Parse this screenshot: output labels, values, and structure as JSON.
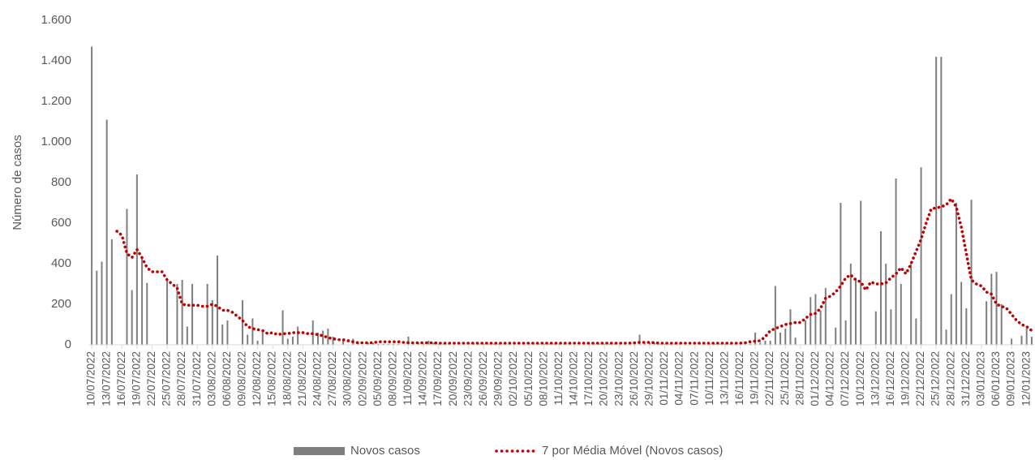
{
  "chart_data": {
    "type": "bar",
    "ylabel": "Número de casos",
    "ylim": [
      0,
      1600
    ],
    "yticks": [
      0,
      200,
      400,
      600,
      800,
      {
        "value": 1000,
        "label": "1.000"
      },
      {
        "value": 1200,
        "label": "1.200"
      },
      {
        "value": 1400,
        "label": "1.400"
      },
      {
        "value": 1600,
        "label": "1.600"
      }
    ],
    "grid": false,
    "legend": "bottom",
    "categories": [
      "10/07/2022",
      null,
      null,
      "13/07/2022",
      null,
      null,
      "16/07/2022",
      null,
      null,
      "19/07/2022",
      null,
      null,
      "22/07/2022",
      null,
      null,
      "25/07/2022",
      null,
      null,
      "28/07/2022",
      null,
      null,
      "31/07/2022",
      null,
      null,
      "03/08/2022",
      null,
      null,
      "06/08/2022",
      null,
      null,
      "09/08/2022",
      null,
      null,
      "12/08/2022",
      null,
      null,
      "15/08/2022",
      null,
      null,
      "18/08/2022",
      null,
      null,
      "21/08/2022",
      null,
      null,
      "24/08/2022",
      null,
      null,
      "27/08/2022",
      null,
      null,
      "30/08/2022",
      null,
      null,
      "02/09/2022",
      null,
      null,
      "05/09/2022",
      null,
      null,
      "08/09/2022",
      null,
      null,
      "11/09/2022",
      null,
      null,
      "14/09/2022",
      null,
      null,
      "17/09/2022",
      null,
      null,
      "20/09/2022",
      null,
      null,
      "23/09/2022",
      null,
      null,
      "26/09/2022",
      null,
      null,
      "29/09/2022",
      null,
      null,
      "02/10/2022",
      null,
      null,
      "05/10/2022",
      null,
      null,
      "08/10/2022",
      null,
      null,
      "11/10/2022",
      null,
      null,
      "14/10/2022",
      null,
      null,
      "17/10/2022",
      null,
      null,
      "20/10/2022",
      null,
      null,
      "23/10/2022",
      null,
      null,
      "26/10/2022",
      null,
      null,
      "29/10/2022",
      null,
      null,
      "01/11/2022",
      null,
      null,
      "04/11/2022",
      null,
      null,
      "07/11/2022",
      null,
      null,
      "10/11/2022",
      null,
      null,
      "13/11/2022",
      null,
      null,
      "16/11/2022",
      null,
      null,
      "19/11/2022",
      null,
      null,
      "22/11/2022",
      null,
      null,
      "25/11/2022",
      null,
      null,
      "28/11/2022",
      null,
      null,
      "01/12/2022",
      null,
      null,
      "04/12/2022",
      null,
      null,
      "07/12/2022",
      null,
      null,
      "10/12/2022",
      null,
      null,
      "13/12/2022",
      null,
      null,
      "16/12/2022",
      null,
      null,
      "19/12/2022",
      null,
      null,
      "22/12/2022",
      null,
      null,
      "25/12/2022",
      null,
      null,
      "28/12/2022",
      null,
      null,
      "31/12/2022",
      null,
      null,
      "03/01/2023",
      null,
      null,
      "06/01/2023",
      null,
      null,
      "09/01/2023",
      null,
      null,
      "12/01/2023",
      null
    ],
    "series": [
      {
        "name": "Novos casos",
        "type": "bar",
        "color": "#7f7f7f",
        "values": [
          1470,
          365,
          410,
          1110,
          520,
          0,
          0,
          670,
          270,
          840,
          430,
          305,
          0,
          0,
          0,
          320,
          0,
          300,
          320,
          90,
          300,
          0,
          0,
          300,
          220,
          440,
          100,
          120,
          0,
          0,
          220,
          50,
          130,
          20,
          70,
          0,
          0,
          0,
          170,
          30,
          40,
          90,
          0,
          0,
          120,
          60,
          70,
          80,
          40,
          0,
          20,
          0,
          30,
          10,
          0,
          10,
          10,
          5,
          5,
          5,
          5,
          5,
          0,
          40,
          5,
          10,
          5,
          20,
          10,
          5,
          5,
          5,
          5,
          5,
          5,
          5,
          5,
          5,
          5,
          5,
          5,
          5,
          5,
          5,
          5,
          5,
          5,
          5,
          5,
          5,
          5,
          5,
          5,
          5,
          5,
          5,
          5,
          5,
          5,
          5,
          5,
          5,
          5,
          5,
          5,
          5,
          5,
          5,
          5,
          50,
          10,
          10,
          10,
          5,
          5,
          5,
          5,
          5,
          5,
          5,
          5,
          5,
          5,
          5,
          5,
          5,
          5,
          5,
          5,
          5,
          5,
          5,
          60,
          10,
          20,
          20,
          290,
          60,
          80,
          175,
          35,
          0,
          120,
          235,
          250,
          170,
          280,
          0,
          85,
          700,
          120,
          400,
          330,
          710,
          0,
          0,
          165,
          560,
          400,
          175,
          820,
          300,
          0,
          410,
          130,
          875,
          0,
          0,
          1420,
          1420,
          75,
          250,
          700,
          310,
          180,
          715,
          0,
          0,
          215,
          350,
          360,
          200,
          0,
          30,
          0,
          45,
          80,
          40
        ]
      },
      {
        "name": "7 por Média Móvel (Novos casos)",
        "type": "line",
        "line_style": "dotted",
        "color": "#c00000",
        "values": [
          null,
          null,
          null,
          null,
          null,
          560,
          540,
          450,
          430,
          470,
          430,
          380,
          360,
          360,
          360,
          320,
          300,
          280,
          200,
          195,
          195,
          195,
          190,
          190,
          200,
          190,
          170,
          170,
          160,
          140,
          120,
          90,
          80,
          75,
          70,
          55,
          60,
          50,
          55,
          55,
          60,
          60,
          60,
          55,
          55,
          50,
          45,
          35,
          30,
          25,
          25,
          20,
          15,
          10,
          10,
          10,
          10,
          15,
          15,
          15,
          15,
          15,
          12,
          10,
          10,
          10,
          10,
          10,
          10,
          8,
          8,
          8,
          8,
          8,
          8,
          8,
          8,
          8,
          8,
          8,
          8,
          8,
          8,
          8,
          8,
          8,
          8,
          8,
          8,
          8,
          8,
          8,
          8,
          8,
          8,
          8,
          8,
          8,
          8,
          8,
          8,
          8,
          8,
          8,
          8,
          8,
          8,
          8,
          10,
          12,
          12,
          12,
          10,
          8,
          8,
          8,
          8,
          8,
          8,
          8,
          8,
          8,
          8,
          8,
          8,
          8,
          8,
          8,
          8,
          8,
          10,
          15,
          18,
          20,
          40,
          70,
          80,
          90,
          100,
          105,
          110,
          110,
          130,
          150,
          155,
          180,
          230,
          240,
          260,
          290,
          330,
          345,
          320,
          310,
          270,
          310,
          300,
          300,
          305,
          330,
          350,
          380,
          350,
          400,
          460,
          520,
          600,
          670,
          675,
          680,
          690,
          720,
          680,
          580,
          450,
          320,
          300,
          290,
          260,
          250,
          200,
          190,
          180,
          150,
          120,
          100,
          90,
          70
        ]
      }
    ]
  }
}
